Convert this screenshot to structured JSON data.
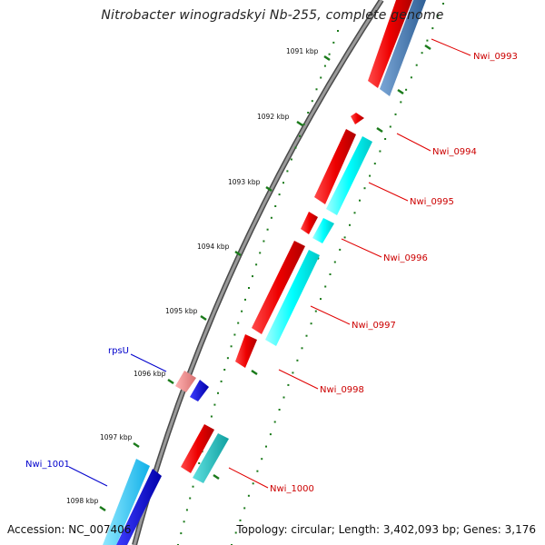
{
  "title": "Nitrobacter winogradskyi Nb-255, complete genome",
  "accession": "Accession: NC_007406",
  "topology": "Topology: circular; Length: 3,402,093 bp; Genes: 3,176",
  "scale_labels": [
    "1091 kbp",
    "1092 kbp",
    "1093 kbp",
    "1094 kbp",
    "1095 kbp",
    "1096 kbp",
    "1097 kbp",
    "1098 kbp"
  ],
  "gene_labels": [
    {
      "name": "Nwi_0993",
      "color": "#cc0000"
    },
    {
      "name": "Nwi_0994",
      "color": "#cc0000"
    },
    {
      "name": "Nwi_0995",
      "color": "#cc0000"
    },
    {
      "name": "Nwi_0996",
      "color": "#cc0000"
    },
    {
      "name": "Nwi_0997",
      "color": "#cc0000"
    },
    {
      "name": "Nwi_0998",
      "color": "#cc0000"
    },
    {
      "name": "Nwi_1000",
      "color": "#cc0000"
    },
    {
      "name": "rpsU",
      "color": "#0000cc"
    },
    {
      "name": "Nwi_1001",
      "color": "#0000cc"
    }
  ],
  "colors": {
    "backbone": "#8a8a8a",
    "forward_cds": "#ee0000",
    "forward_shadow": "#aa0000",
    "cyan_cds": "#00ffff",
    "teal_cds": "#22c8c8",
    "steel_cds": "#4a7fb5",
    "blue_cds": "#0000ee",
    "pink_cds": "#ee8888",
    "scale_tick": "#1a7a1a"
  }
}
